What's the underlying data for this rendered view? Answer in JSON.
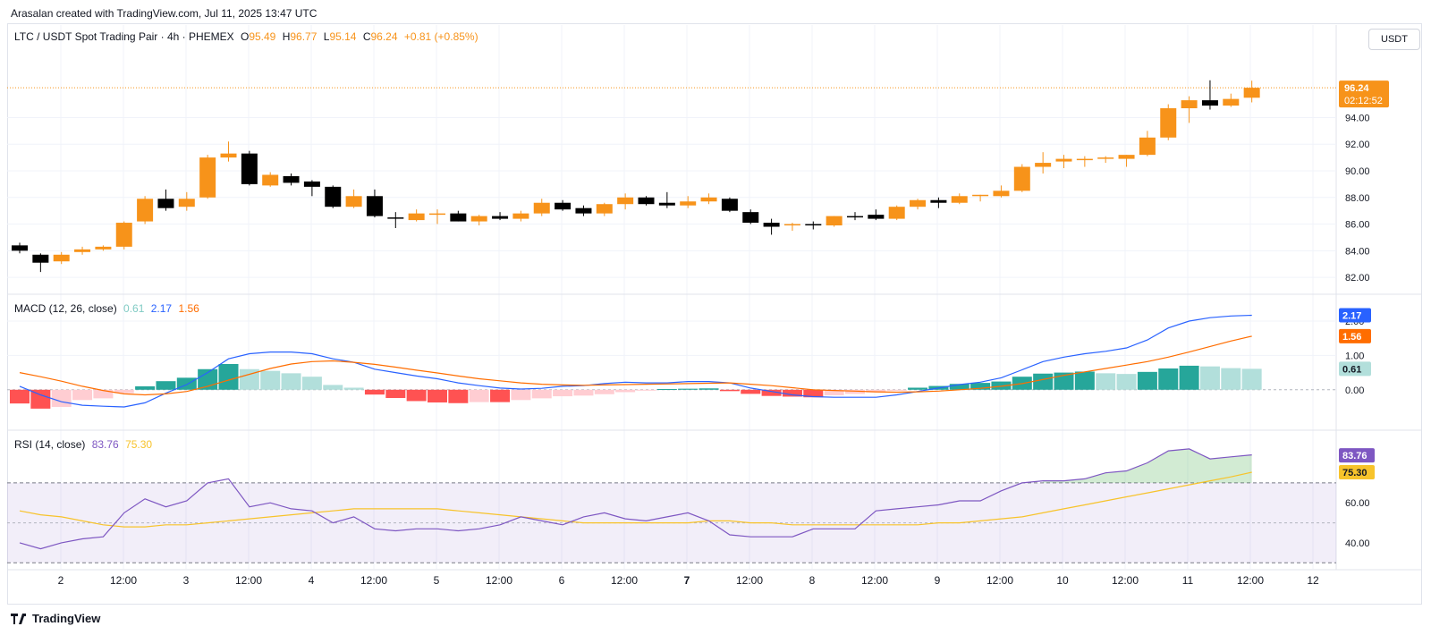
{
  "caption": "Arasalan created with TradingView.com, Jul 11, 2025 13:47 UTC",
  "footer_brand": "TradingView",
  "unit": "USDT",
  "colors": {
    "up": "#f7931a",
    "down": "#000000",
    "macd": "#2962ff",
    "signal": "#ff6d00",
    "hist_pos_strong": "#26a69a",
    "hist_pos_weak": "#b2dfdb",
    "hist_neg_strong": "#ff5252",
    "hist_neg_weak": "#ffcdd2",
    "rsi": "#7e57c2",
    "rsi_ma": "#f7c32b"
  },
  "header": {
    "symbol": "LTC / USDT Spot Trading Pair · 4h · PHEMEX",
    "o_label": "O",
    "o": "95.49",
    "h_label": "H",
    "h": "96.77",
    "l_label": "L",
    "l": "95.14",
    "c_label": "C",
    "c": "96.24",
    "change": "+0.81 (+0.85%)"
  },
  "macd_legend": {
    "label": "MACD (12, 26, close)",
    "hist": "0.61",
    "macd": "2.17",
    "signal": "1.56"
  },
  "rsi_legend": {
    "label": "RSI (14, close)",
    "rsi": "83.76",
    "ma": "75.30"
  },
  "chart_data": [
    {
      "type": "candlestick",
      "title": "LTC / USDT Spot Trading Pair · 4h · PHEMEX",
      "x_ticks": [
        "2",
        "12:00",
        "3",
        "12:00",
        "4",
        "12:00",
        "5",
        "12:00",
        "6",
        "12:00",
        "7",
        "12:00",
        "8",
        "12:00",
        "9",
        "12:00",
        "10",
        "12:00",
        "11",
        "12:00",
        "12"
      ],
      "y_ticks": [
        "82.00",
        "84.00",
        "86.00",
        "88.00",
        "90.00",
        "92.00",
        "94.00"
      ],
      "ylim": [
        81.2,
        98.8
      ],
      "last_price": "96.24",
      "countdown": "02:12:52",
      "candles": [
        {
          "o": 84.4,
          "h": 84.6,
          "l": 83.8,
          "c": 84.0
        },
        {
          "o": 83.7,
          "h": 83.8,
          "l": 82.4,
          "c": 83.1
        },
        {
          "o": 83.2,
          "h": 83.9,
          "l": 83.0,
          "c": 83.7
        },
        {
          "o": 83.9,
          "h": 84.3,
          "l": 83.7,
          "c": 84.1
        },
        {
          "o": 84.1,
          "h": 84.4,
          "l": 84.0,
          "c": 84.3
        },
        {
          "o": 84.3,
          "h": 86.2,
          "l": 84.1,
          "c": 86.1
        },
        {
          "o": 86.2,
          "h": 88.1,
          "l": 86.0,
          "c": 87.9
        },
        {
          "o": 87.9,
          "h": 88.6,
          "l": 87.0,
          "c": 87.2
        },
        {
          "o": 87.3,
          "h": 88.4,
          "l": 87.0,
          "c": 87.9
        },
        {
          "o": 88.0,
          "h": 91.2,
          "l": 87.9,
          "c": 91.0
        },
        {
          "o": 91.0,
          "h": 92.2,
          "l": 90.7,
          "c": 91.3
        },
        {
          "o": 91.3,
          "h": 91.5,
          "l": 88.9,
          "c": 89.0
        },
        {
          "o": 88.9,
          "h": 89.9,
          "l": 88.8,
          "c": 89.7
        },
        {
          "o": 89.6,
          "h": 89.8,
          "l": 88.9,
          "c": 89.1
        },
        {
          "o": 89.2,
          "h": 89.3,
          "l": 88.1,
          "c": 88.8
        },
        {
          "o": 88.8,
          "h": 88.9,
          "l": 87.2,
          "c": 87.3
        },
        {
          "o": 87.3,
          "h": 88.6,
          "l": 87.2,
          "c": 88.1
        },
        {
          "o": 88.1,
          "h": 88.6,
          "l": 86.5,
          "c": 86.6
        },
        {
          "o": 86.5,
          "h": 86.9,
          "l": 85.7,
          "c": 86.4
        },
        {
          "o": 86.3,
          "h": 87.1,
          "l": 86.2,
          "c": 86.8
        },
        {
          "o": 86.7,
          "h": 87.1,
          "l": 86.0,
          "c": 86.8
        },
        {
          "o": 86.8,
          "h": 87.0,
          "l": 86.2,
          "c": 86.2
        },
        {
          "o": 86.2,
          "h": 86.7,
          "l": 85.9,
          "c": 86.6
        },
        {
          "o": 86.6,
          "h": 86.9,
          "l": 86.3,
          "c": 86.4
        },
        {
          "o": 86.4,
          "h": 87.0,
          "l": 86.2,
          "c": 86.8
        },
        {
          "o": 86.8,
          "h": 87.9,
          "l": 86.6,
          "c": 87.6
        },
        {
          "o": 87.6,
          "h": 87.8,
          "l": 87.0,
          "c": 87.1
        },
        {
          "o": 87.2,
          "h": 87.4,
          "l": 86.6,
          "c": 86.8
        },
        {
          "o": 86.8,
          "h": 87.6,
          "l": 86.6,
          "c": 87.5
        },
        {
          "o": 87.5,
          "h": 88.3,
          "l": 87.1,
          "c": 88.0
        },
        {
          "o": 88.0,
          "h": 88.1,
          "l": 87.4,
          "c": 87.5
        },
        {
          "o": 87.6,
          "h": 88.4,
          "l": 87.2,
          "c": 87.4
        },
        {
          "o": 87.4,
          "h": 88.1,
          "l": 87.2,
          "c": 87.7
        },
        {
          "o": 87.7,
          "h": 88.3,
          "l": 87.5,
          "c": 88.0
        },
        {
          "o": 87.9,
          "h": 88.0,
          "l": 86.9,
          "c": 87.0
        },
        {
          "o": 86.9,
          "h": 87.1,
          "l": 86.0,
          "c": 86.1
        },
        {
          "o": 86.1,
          "h": 86.4,
          "l": 85.2,
          "c": 85.8
        },
        {
          "o": 85.9,
          "h": 86.1,
          "l": 85.5,
          "c": 86.0
        },
        {
          "o": 86.0,
          "h": 86.2,
          "l": 85.6,
          "c": 85.9
        },
        {
          "o": 85.9,
          "h": 86.6,
          "l": 85.8,
          "c": 86.6
        },
        {
          "o": 86.6,
          "h": 86.9,
          "l": 86.3,
          "c": 86.5
        },
        {
          "o": 86.7,
          "h": 87.1,
          "l": 86.3,
          "c": 86.4
        },
        {
          "o": 86.4,
          "h": 87.4,
          "l": 86.3,
          "c": 87.3
        },
        {
          "o": 87.3,
          "h": 87.9,
          "l": 87.1,
          "c": 87.8
        },
        {
          "o": 87.8,
          "h": 88.0,
          "l": 87.2,
          "c": 87.6
        },
        {
          "o": 87.6,
          "h": 88.3,
          "l": 87.5,
          "c": 88.1
        },
        {
          "o": 88.1,
          "h": 88.2,
          "l": 87.7,
          "c": 88.2
        },
        {
          "o": 88.1,
          "h": 88.9,
          "l": 88.0,
          "c": 88.5
        },
        {
          "o": 88.5,
          "h": 90.5,
          "l": 88.4,
          "c": 90.3
        },
        {
          "o": 90.3,
          "h": 91.4,
          "l": 89.8,
          "c": 90.6
        },
        {
          "o": 90.7,
          "h": 91.2,
          "l": 90.2,
          "c": 90.9
        },
        {
          "o": 90.8,
          "h": 91.1,
          "l": 90.3,
          "c": 90.9
        },
        {
          "o": 90.9,
          "h": 91.1,
          "l": 90.6,
          "c": 91.0
        },
        {
          "o": 90.9,
          "h": 91.2,
          "l": 90.3,
          "c": 91.2
        },
        {
          "o": 91.2,
          "h": 93.0,
          "l": 91.1,
          "c": 92.5
        },
        {
          "o": 92.5,
          "h": 95.0,
          "l": 92.3,
          "c": 94.7
        },
        {
          "o": 94.7,
          "h": 95.6,
          "l": 93.6,
          "c": 95.3
        },
        {
          "o": 95.3,
          "h": 96.8,
          "l": 94.6,
          "c": 94.9
        },
        {
          "o": 94.9,
          "h": 95.8,
          "l": 94.8,
          "c": 95.4
        },
        {
          "o": 95.49,
          "h": 96.77,
          "l": 95.14,
          "c": 96.24
        }
      ]
    },
    {
      "type": "line",
      "title": "MACD (12, 26, close)",
      "y_ticks": [
        "0.00",
        "1.00",
        "2.00"
      ],
      "ylim": [
        -1.1,
        2.6
      ],
      "histogram": [
        -0.4,
        -0.55,
        -0.5,
        -0.3,
        -0.25,
        -0.1,
        0.1,
        0.25,
        0.35,
        0.6,
        0.75,
        0.6,
        0.55,
        0.48,
        0.38,
        0.14,
        0.06,
        -0.14,
        -0.24,
        -0.33,
        -0.37,
        -0.39,
        -0.36,
        -0.36,
        -0.3,
        -0.25,
        -0.19,
        -0.17,
        -0.13,
        -0.07,
        -0.02,
        0.02,
        0.03,
        0.04,
        -0.04,
        -0.12,
        -0.18,
        -0.2,
        -0.22,
        -0.16,
        -0.12,
        -0.08,
        -0.03,
        0.06,
        0.11,
        0.17,
        0.2,
        0.24,
        0.38,
        0.47,
        0.5,
        0.53,
        0.48,
        0.46,
        0.52,
        0.62,
        0.7,
        0.68,
        0.63,
        0.61
      ],
      "macd": [
        0.1,
        -0.15,
        -0.35,
        -0.45,
        -0.48,
        -0.5,
        -0.38,
        -0.1,
        0.15,
        0.5,
        0.9,
        1.05,
        1.1,
        1.1,
        1.05,
        0.9,
        0.8,
        0.6,
        0.5,
        0.4,
        0.32,
        0.2,
        0.12,
        0.05,
        0.02,
        0.04,
        0.1,
        0.12,
        0.18,
        0.22,
        0.2,
        0.2,
        0.24,
        0.24,
        0.2,
        0.05,
        -0.05,
        -0.15,
        -0.2,
        -0.22,
        -0.22,
        -0.22,
        -0.15,
        -0.05,
        0.05,
        0.15,
        0.22,
        0.35,
        0.58,
        0.82,
        0.95,
        1.05,
        1.12,
        1.22,
        1.45,
        1.8,
        2.0,
        2.1,
        2.15,
        2.17
      ],
      "signal": [
        0.5,
        0.38,
        0.25,
        0.1,
        -0.02,
        -0.12,
        -0.15,
        -0.12,
        -0.05,
        0.1,
        0.28,
        0.45,
        0.62,
        0.75,
        0.82,
        0.84,
        0.8,
        0.74,
        0.66,
        0.57,
        0.49,
        0.4,
        0.32,
        0.26,
        0.2,
        0.16,
        0.14,
        0.13,
        0.14,
        0.15,
        0.16,
        0.17,
        0.18,
        0.19,
        0.2,
        0.16,
        0.12,
        0.06,
        0.0,
        -0.02,
        -0.04,
        -0.06,
        -0.07,
        -0.06,
        -0.04,
        0.0,
        0.04,
        0.1,
        0.18,
        0.3,
        0.42,
        0.52,
        0.62,
        0.72,
        0.82,
        0.95,
        1.1,
        1.26,
        1.42,
        1.56
      ]
    },
    {
      "type": "line",
      "title": "RSI (14, close)",
      "y_ticks": [
        "40.00",
        "60.00"
      ],
      "ylim": [
        27,
        95
      ],
      "band": [
        30,
        70
      ],
      "middle": 50,
      "rsi": [
        40,
        37,
        40,
        42,
        43,
        55,
        62,
        58,
        61,
        70,
        72,
        58,
        60,
        57,
        56,
        50,
        53,
        47,
        46,
        47,
        47,
        46,
        47,
        49,
        53,
        51,
        49,
        53,
        55,
        52,
        51,
        53,
        55,
        51,
        44,
        43,
        43,
        43,
        47,
        47,
        47,
        56,
        57,
        58,
        59,
        61,
        61,
        66,
        70,
        71,
        71,
        72,
        75,
        76,
        80,
        86,
        87,
        82,
        83,
        84
      ],
      "rsi_ma": [
        56,
        54,
        53,
        51,
        49,
        48,
        48,
        49,
        49,
        50,
        51,
        52,
        53,
        54,
        55,
        56,
        57,
        57,
        57,
        57,
        57,
        56,
        55,
        54,
        53,
        52,
        51,
        50,
        50,
        50,
        50,
        50,
        50,
        51,
        51,
        50,
        50,
        49,
        49,
        49,
        49,
        49,
        49,
        49,
        50,
        50,
        51,
        52,
        53,
        55,
        57,
        59,
        61,
        63,
        65,
        67,
        69,
        71,
        73,
        75.3
      ]
    }
  ]
}
